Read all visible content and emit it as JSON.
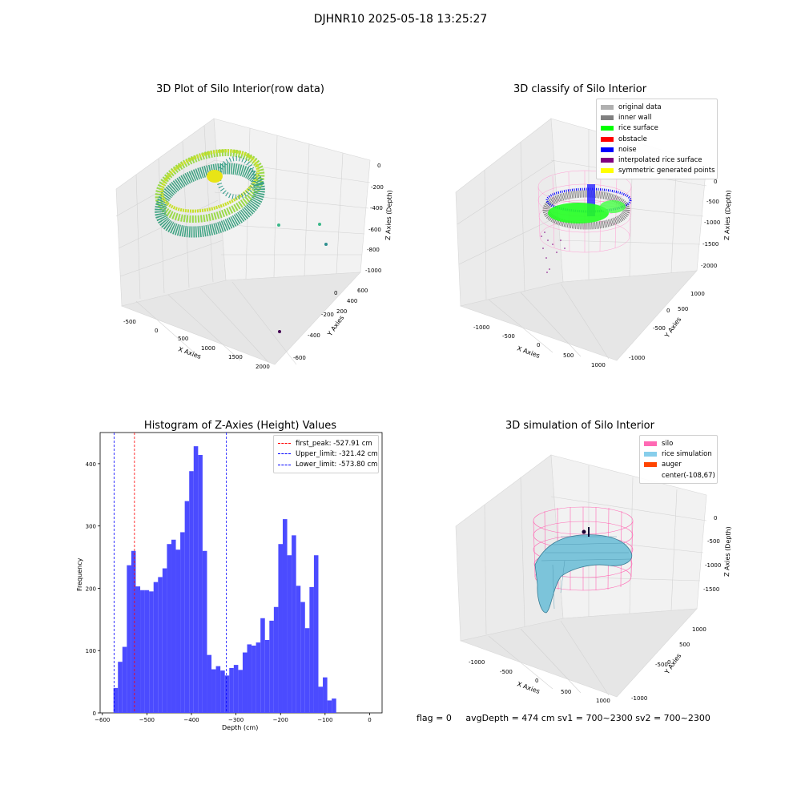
{
  "suptitle": "DJHNR10 2025-05-18 13:25:27",
  "panels": {
    "raw": {
      "title": "3D Plot of Silo Interior(row data)",
      "xlabel": "X Axies",
      "ylabel": "Y Axies",
      "zlabel": "Z Axies (Depth)",
      "xticks": [
        "-500",
        "0",
        "500",
        "1000",
        "1500",
        "2000"
      ],
      "yticks": [
        "-600",
        "-400",
        "-200",
        "0",
        "200",
        "400",
        "600"
      ],
      "zticks": [
        "0",
        "-200",
        "-400",
        "-600",
        "-800",
        "-1000"
      ]
    },
    "classify": {
      "title": "3D classify of Silo Interior",
      "xlabel": "X Axies",
      "ylabel": "Y Axies",
      "zlabel": "Z Axies (Depth)",
      "xticks": [
        "-1000",
        "-500",
        "0",
        "500",
        "1000"
      ],
      "yticks": [
        "-1000",
        "-500",
        "0",
        "500",
        "1000"
      ],
      "zticks": [
        "0",
        "-500",
        "-1000",
        "-1500",
        "-2000"
      ],
      "legend": [
        {
          "label": "original data",
          "color": "#b0b0b0"
        },
        {
          "label": "inner wall",
          "color": "#808080"
        },
        {
          "label": "rice surface",
          "color": "#00ff00"
        },
        {
          "label": "obstacle",
          "color": "#ff0000"
        },
        {
          "label": "noise",
          "color": "#0000ff"
        },
        {
          "label": "interpolated rice surface",
          "color": "#800080"
        },
        {
          "label": "symmetric generated points",
          "color": "#ffff00"
        }
      ]
    },
    "histogram": {
      "title": "Histogram of Z-Axies (Height) Values",
      "legend": [
        {
          "label": "first_peak: -527.91 cm",
          "color": "#ff0000"
        },
        {
          "label": "Upper_limit: -321.42 cm",
          "color": "#0000ff"
        },
        {
          "label": "Lower_limit: -573.80 cm",
          "color": "#0000ff"
        }
      ]
    },
    "simulation": {
      "title": "3D simulation of Silo Interior",
      "xlabel": "X Axies",
      "ylabel": "Y Axies",
      "zlabel": "Z Axies (Depth)",
      "xticks": [
        "-1000",
        "-500",
        "0",
        "500",
        "1000"
      ],
      "yticks": [
        "-1000",
        "-500",
        "0",
        "500",
        "1000"
      ],
      "zticks": [
        "0",
        "-500",
        "-1000",
        "-1500"
      ],
      "legend": [
        {
          "label": "silo",
          "color": "#ff69b4"
        },
        {
          "label": "rice simulation",
          "color": "#87ceeb"
        },
        {
          "label": "auger",
          "color": "#ff4500"
        },
        {
          "label": "center(-108,67)",
          "color": ""
        }
      ]
    }
  },
  "footer": {
    "flag": "flag = 0",
    "stats": "avgDepth = 474 cm  sv1 = 700~2300  sv2 = 700~2300"
  },
  "chart_data": [
    {
      "type": "scatter",
      "title": "3D Plot of Silo Interior(row data)",
      "xlabel": "X Axies",
      "ylabel": "Y Axies",
      "zlabel": "Z Axies (Depth)",
      "xlim": [
        -600,
        2100
      ],
      "ylim": [
        -650,
        650
      ],
      "zlim": [
        -1000,
        0
      ],
      "grid": true
    },
    {
      "type": "scatter",
      "title": "3D classify of Silo Interior",
      "xlabel": "X Axies",
      "ylabel": "Y Axies",
      "zlabel": "Z Axies (Depth)",
      "xlim": [
        -1300,
        1100
      ],
      "ylim": [
        -1100,
        1100
      ],
      "zlim": [
        -2000,
        0
      ],
      "legend_position": "top-right",
      "grid": true
    },
    {
      "type": "bar",
      "title": "Histogram of Z-Axies (Height) Values",
      "xlabel": "Depth (cm)",
      "ylabel": "Frequency",
      "xlim": [
        -605,
        28
      ],
      "ylim": [
        0,
        450
      ],
      "xticks": [
        -600,
        -500,
        -400,
        -300,
        -200,
        -100,
        0
      ],
      "yticks": [
        0,
        100,
        200,
        300,
        400
      ],
      "bin_start": -575,
      "bin_width": 10,
      "values": [
        40,
        82,
        106,
        237,
        260,
        203,
        197,
        197,
        195,
        210,
        218,
        232,
        271,
        278,
        262,
        290,
        340,
        388,
        428,
        414,
        260,
        93,
        70,
        75,
        68,
        60,
        72,
        77,
        69,
        97,
        110,
        108,
        113,
        152,
        117,
        148,
        170,
        271,
        311,
        253,
        285,
        204,
        178,
        136,
        202,
        253,
        42,
        57,
        20,
        23
      ],
      "color": "#4b4bff",
      "vlines": [
        {
          "x": -527.91,
          "label": "first_peak: -527.91 cm",
          "color": "#ff0000"
        },
        {
          "x": -321.42,
          "label": "Upper_limit: -321.42 cm",
          "color": "#0000ff"
        },
        {
          "x": -573.8,
          "label": "Lower_limit: -573.80 cm",
          "color": "#0000ff"
        }
      ],
      "legend_position": "top-right"
    },
    {
      "type": "area",
      "title": "3D simulation of Silo Interior",
      "xlabel": "X Axies",
      "ylabel": "Y Axies",
      "zlabel": "Z Axies (Depth)",
      "xlim": [
        -1300,
        1100
      ],
      "ylim": [
        -1100,
        1100
      ],
      "zlim": [
        -1800,
        300
      ],
      "legend_position": "top-right",
      "grid": true
    }
  ]
}
